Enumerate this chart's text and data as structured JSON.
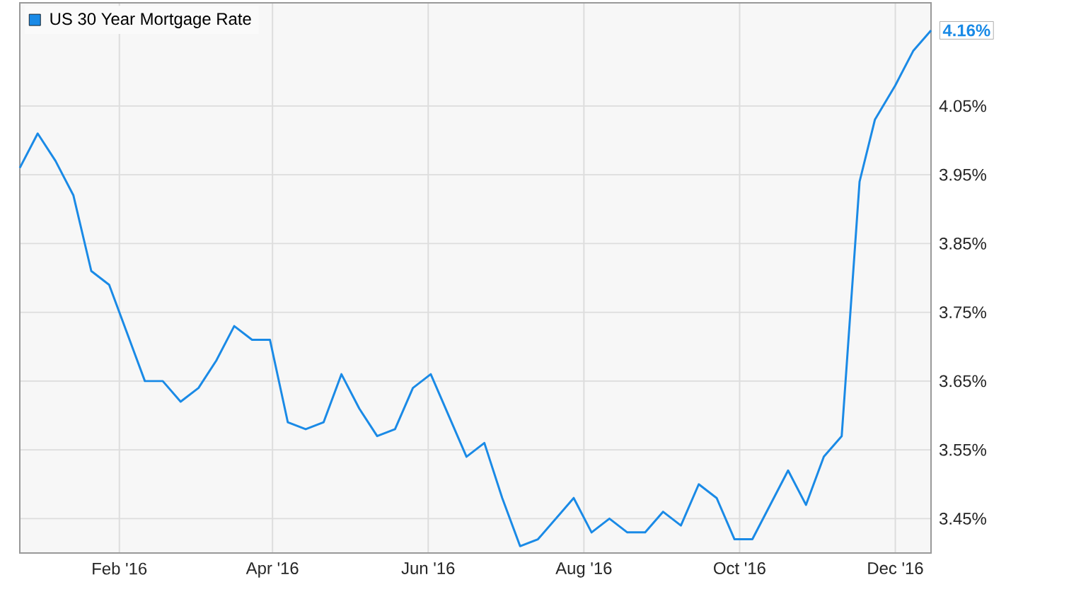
{
  "chart_data": {
    "type": "line",
    "x": [
      "2015-12-24",
      "2015-12-31",
      "2016-01-07",
      "2016-01-14",
      "2016-01-21",
      "2016-01-28",
      "2016-02-04",
      "2016-02-11",
      "2016-02-18",
      "2016-02-25",
      "2016-03-03",
      "2016-03-10",
      "2016-03-17",
      "2016-03-24",
      "2016-03-31",
      "2016-04-07",
      "2016-04-14",
      "2016-04-21",
      "2016-04-28",
      "2016-05-05",
      "2016-05-12",
      "2016-05-19",
      "2016-05-26",
      "2016-06-02",
      "2016-06-09",
      "2016-06-16",
      "2016-06-23",
      "2016-06-30",
      "2016-07-07",
      "2016-07-14",
      "2016-07-21",
      "2016-07-28",
      "2016-08-04",
      "2016-08-11",
      "2016-08-18",
      "2016-08-25",
      "2016-09-01",
      "2016-09-08",
      "2016-09-15",
      "2016-09-22",
      "2016-09-29",
      "2016-10-06",
      "2016-10-13",
      "2016-10-20",
      "2016-10-27",
      "2016-11-03",
      "2016-11-10",
      "2016-11-17",
      "2016-11-23",
      "2016-12-01",
      "2016-12-08",
      "2016-12-15"
    ],
    "series": [
      {
        "name": "US 30 Year Mortgage Rate",
        "color": "#1a8ae6",
        "values": [
          3.96,
          4.01,
          3.97,
          3.92,
          3.81,
          3.79,
          3.72,
          3.65,
          3.65,
          3.62,
          3.64,
          3.68,
          3.73,
          3.71,
          3.71,
          3.59,
          3.58,
          3.59,
          3.66,
          3.61,
          3.57,
          3.58,
          3.64,
          3.66,
          3.6,
          3.54,
          3.56,
          3.48,
          3.41,
          3.42,
          3.45,
          3.48,
          3.43,
          3.45,
          3.43,
          3.43,
          3.46,
          3.44,
          3.5,
          3.48,
          3.42,
          3.42,
          3.47,
          3.52,
          3.47,
          3.54,
          3.57,
          3.94,
          4.03,
          4.08,
          4.13,
          4.16
        ]
      }
    ],
    "xlim": [
      "2015-12-24",
      "2016-12-15"
    ],
    "xticks": [
      {
        "value": "2016-02-01",
        "label": "Feb '16"
      },
      {
        "value": "2016-04-01",
        "label": "Apr '16"
      },
      {
        "value": "2016-06-01",
        "label": "Jun '16"
      },
      {
        "value": "2016-08-01",
        "label": "Aug '16"
      },
      {
        "value": "2016-10-01",
        "label": "Oct '16"
      },
      {
        "value": "2016-12-01",
        "label": "Dec '16"
      }
    ],
    "ylim": [
      3.4,
      4.2
    ],
    "yticks": [
      {
        "value": 3.45,
        "label": "3.45%"
      },
      {
        "value": 3.55,
        "label": "3.55%"
      },
      {
        "value": 3.65,
        "label": "3.65%"
      },
      {
        "value": 3.75,
        "label": "3.75%"
      },
      {
        "value": 3.85,
        "label": "3.85%"
      },
      {
        "value": 3.95,
        "label": "3.95%"
      },
      {
        "value": 4.05,
        "label": "4.05%"
      }
    ],
    "annotations": [
      {
        "text": "4.16%",
        "x": "2016-12-15",
        "y": 4.16
      }
    ],
    "grid": true,
    "legend": "top left",
    "marker": "none",
    "line_style": "solid"
  }
}
